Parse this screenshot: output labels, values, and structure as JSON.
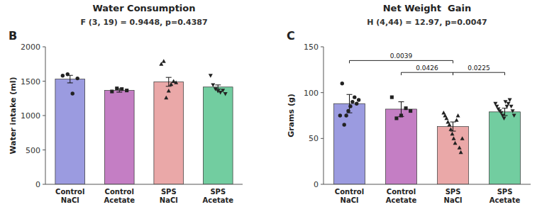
{
  "chart_data": [
    {
      "type": "bar",
      "title": "Water Consumption",
      "subtitle": "F (3, 19) = 0.9448, p=0.4387",
      "panel_label": "B",
      "y_label": "Water intake (ml)",
      "categories": [
        "Control\nNaCl",
        "Control\nAcetate",
        "SPS\nNaCl",
        "SPS\nAcetate"
      ],
      "values": [
        1530,
        1365,
        1490,
        1415
      ],
      "errors": [
        55,
        25,
        65,
        30
      ],
      "colors": [
        "#9B9BE0",
        "#C47EC4",
        "#EAA8A8",
        "#72CDA0"
      ],
      "points": [
        [
          1580,
          1600,
          1320,
          1540
        ],
        [
          1350,
          1395,
          1385,
          1365
        ],
        [
          1750,
          1790,
          1260,
          1360,
          1455,
          1500,
          1480
        ],
        [
          1580,
          1445,
          1385,
          1355,
          1335,
          1365,
          1315
        ]
      ],
      "markers": [
        "circle",
        "square",
        "triangle-up",
        "triangle-down"
      ],
      "ylim": [
        0,
        2000
      ],
      "yticks": [
        0,
        500,
        1000,
        1500,
        2000
      ],
      "grid": false
    },
    {
      "type": "bar",
      "title": "Net Weight  Gain",
      "subtitle": "H (4,44) = 12.97, p=0.0047",
      "panel_label": "C",
      "y_label": "Grams (g)",
      "categories": [
        "Control\nNaCl",
        "Control\nAcetate",
        "SPS\nNaCl",
        "SPS\nAcetate"
      ],
      "values": [
        88,
        82,
        63,
        79
      ],
      "errors": [
        10,
        8,
        5,
        4
      ],
      "colors": [
        "#9B9BE0",
        "#C47EC4",
        "#EAA8A8",
        "#72CDA0"
      ],
      "points": [
        [
          75,
          110,
          65,
          75,
          80,
          85,
          90,
          95,
          88,
          92
        ],
        [
          95,
          72,
          75,
          83,
          80
        ],
        [
          78,
          75,
          72,
          68,
          65,
          60,
          55,
          50,
          45,
          70,
          75,
          40,
          35,
          50
        ],
        [
          88,
          85,
          82,
          80,
          78,
          75,
          72,
          90,
          85,
          88,
          92,
          85,
          80,
          75
        ]
      ],
      "markers": [
        "circle",
        "square",
        "triangle-up",
        "triangle-down"
      ],
      "brackets": [
        {
          "x1": 0,
          "x2": 2,
          "y": 135,
          "label": "0.0039"
        },
        {
          "x1": 1,
          "x2": 2,
          "y": 122,
          "label": "0.0426"
        },
        {
          "x1": 2,
          "x2": 3,
          "y": 122,
          "label": "0.0225"
        }
      ],
      "ylim": [
        0,
        150
      ],
      "yticks": [
        0,
        50,
        100,
        150
      ],
      "grid": false
    }
  ]
}
